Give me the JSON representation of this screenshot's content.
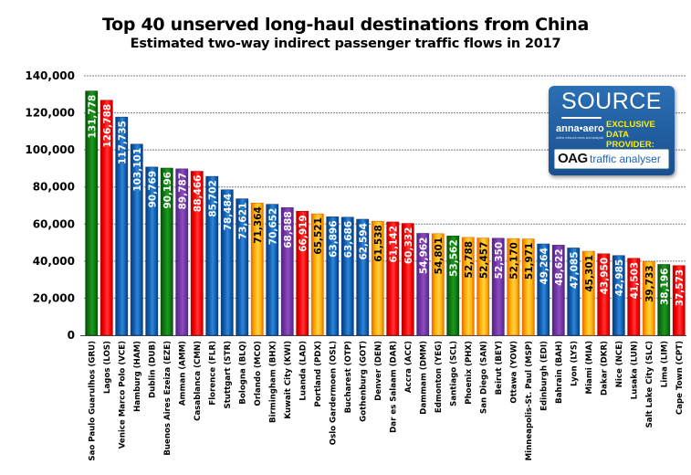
{
  "chart_data": {
    "type": "bar",
    "title": "Top 40 unserved long-haul destinations from China",
    "subtitle": "Estimated two-way indirect passenger traffic flows in 2017",
    "xlabel": "",
    "ylabel": "",
    "ylim": [
      0,
      140000
    ],
    "yticks": [
      "0",
      "20,000",
      "40,000",
      "60,000",
      "80,000",
      "100,000",
      "120,000",
      "140,000"
    ],
    "ytick_values": [
      0,
      20000,
      40000,
      60000,
      80000,
      100000,
      120000,
      140000
    ],
    "grid": true,
    "data_labels": true,
    "bars": [
      {
        "label": "Sao Paulo Guarulhos (GRU)",
        "value": 131778,
        "value_label": "131,778",
        "color": "green"
      },
      {
        "label": "Lagos (LOS)",
        "value": 126788,
        "value_label": "126,788",
        "color": "red"
      },
      {
        "label": "Venice Marco Polo (VCE)",
        "value": 117735,
        "value_label": "117,735",
        "color": "blue"
      },
      {
        "label": "Hamburg (HAM)",
        "value": 103101,
        "value_label": "103,101",
        "color": "blue"
      },
      {
        "label": "Dublin (DUB)",
        "value": 90769,
        "value_label": "90,769",
        "color": "blue"
      },
      {
        "label": "Buenos Aires Ezeiza (EZE)",
        "value": 90196,
        "value_label": "90,196",
        "color": "green"
      },
      {
        "label": "Amman (AMM)",
        "value": 89787,
        "value_label": "89,787",
        "color": "purple"
      },
      {
        "label": "Casablanca (CMN)",
        "value": 88466,
        "value_label": "88,466",
        "color": "red"
      },
      {
        "label": "Florence (FLR)",
        "value": 85702,
        "value_label": "85,702",
        "color": "blue"
      },
      {
        "label": "Stuttgart (STR)",
        "value": 78484,
        "value_label": "78,484",
        "color": "blue"
      },
      {
        "label": "Bologna (BLQ)",
        "value": 73621,
        "value_label": "73,621",
        "color": "blue"
      },
      {
        "label": "Orlando (MCO)",
        "value": 71364,
        "value_label": "71,364",
        "color": "orange"
      },
      {
        "label": "Birmingham (BHX)",
        "value": 70652,
        "value_label": "70,652",
        "color": "blue"
      },
      {
        "label": "Kuwait City (KWI)",
        "value": 68888,
        "value_label": "68,888",
        "color": "purple"
      },
      {
        "label": "Luanda (LAD)",
        "value": 66919,
        "value_label": "66,919",
        "color": "red"
      },
      {
        "label": "Portland (PDX)",
        "value": 65521,
        "value_label": "65,521",
        "color": "orange"
      },
      {
        "label": "Oslo Gardermoen (OSL)",
        "value": 63896,
        "value_label": "63,896",
        "color": "blue"
      },
      {
        "label": "Bucharest (OTP)",
        "value": 63686,
        "value_label": "63,686",
        "color": "blue"
      },
      {
        "label": "Gothenburg (GOT)",
        "value": 62594,
        "value_label": "62,594",
        "color": "blue"
      },
      {
        "label": "Denver (DEN)",
        "value": 61538,
        "value_label": "61,538",
        "color": "orange"
      },
      {
        "label": "Dar es Salaam (DAR)",
        "value": 61142,
        "value_label": "61,142",
        "color": "red"
      },
      {
        "label": "Accra (ACC)",
        "value": 60332,
        "value_label": "60,332",
        "color": "red"
      },
      {
        "label": "Dammam (DMM)",
        "value": 54962,
        "value_label": "54,962",
        "color": "purple"
      },
      {
        "label": "Edmonton (YEG)",
        "value": 54801,
        "value_label": "54,801",
        "color": "orange"
      },
      {
        "label": "Santiago (SCL)",
        "value": 53562,
        "value_label": "53,562",
        "color": "green"
      },
      {
        "label": "Phoenix (PHX)",
        "value": 52788,
        "value_label": "52,788",
        "color": "orange"
      },
      {
        "label": "San Diego (SAN)",
        "value": 52457,
        "value_label": "52,457",
        "color": "orange"
      },
      {
        "label": "Beirut (BEY)",
        "value": 52350,
        "value_label": "52,350",
        "color": "purple"
      },
      {
        "label": "Ottawa (YOW)",
        "value": 52170,
        "value_label": "52,170",
        "color": "orange"
      },
      {
        "label": "Minneapolis-St. Paul (MSP)",
        "value": 51971,
        "value_label": "51,971",
        "color": "orange"
      },
      {
        "label": "Edinburgh (EDI)",
        "value": 49264,
        "value_label": "49,264",
        "color": "blue"
      },
      {
        "label": "Bahrain (BAH)",
        "value": 48622,
        "value_label": "48,622",
        "color": "purple"
      },
      {
        "label": "Lyon (LYS)",
        "value": 47085,
        "value_label": "47,085",
        "color": "blue"
      },
      {
        "label": "Miami (MIA)",
        "value": 45301,
        "value_label": "45,301",
        "color": "orange"
      },
      {
        "label": "Dakar (DKR)",
        "value": 43950,
        "value_label": "43,950",
        "color": "red"
      },
      {
        "label": "Nice (NCE)",
        "value": 42985,
        "value_label": "42,985",
        "color": "blue"
      },
      {
        "label": "Lusaka (LUN)",
        "value": 41503,
        "value_label": "41,503",
        "color": "red"
      },
      {
        "label": "Salt Lake City (SLC)",
        "value": 39733,
        "value_label": "39,733",
        "color": "orange"
      },
      {
        "label": "Lima (LIM)",
        "value": 38196,
        "value_label": "38,196",
        "color": "green"
      },
      {
        "label": "Cape Town (CPT)",
        "value": 37573,
        "value_label": "37,573",
        "color": "red"
      }
    ],
    "palette": {
      "green": {
        "dark": "#0a4d0a",
        "mid": "#0f7a12",
        "light": "#1a9a1e",
        "text": "#ffffff"
      },
      "red": {
        "dark": "#b00000",
        "mid": "#ff0000",
        "light": "#ff3a3a",
        "text": "#ffffff"
      },
      "blue": {
        "dark": "#0b3a78",
        "mid": "#1060b4",
        "light": "#2f86d6",
        "text": "#ffffff"
      },
      "purple": {
        "dark": "#4f2580",
        "mid": "#7434a6",
        "light": "#8a4ebd",
        "text": "#ffffff"
      },
      "orange": {
        "dark": "#e86a00",
        "mid": "#ffb000",
        "light": "#ffd24a",
        "text": "#000000"
      }
    }
  },
  "badge": {
    "source": "SOURCE",
    "anna_logo": "anna•aero",
    "anna_tagline": "airline network news and analysis",
    "exclusive_line1": "EXCLUSIVE",
    "exclusive_line2": "DATA PROVIDER:",
    "oag_mark": "OAG",
    "oag_text": "traffic analyser"
  }
}
